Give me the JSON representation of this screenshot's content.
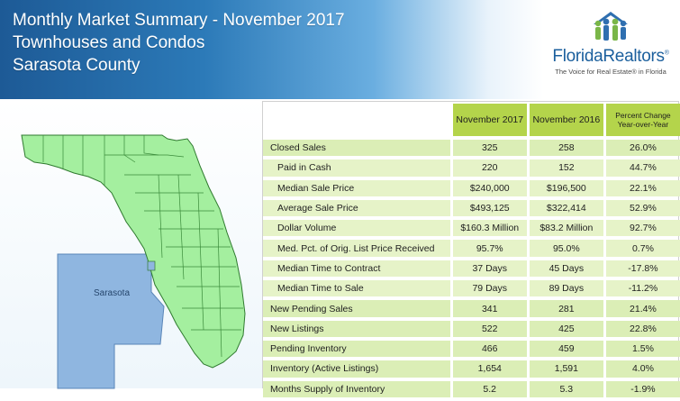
{
  "header": {
    "line1": "Monthly Market Summary - November 2017",
    "line2": "Townhouses and Condos",
    "line3": "Sarasota County"
  },
  "logo": {
    "icon": "people-house-logo-icon",
    "word": "FloridaRealtors",
    "reg": "®",
    "tagline": "The Voice for Real Estate® in Florida"
  },
  "map": {
    "county_label": "Sarasota",
    "highlight_color": "#8fb6e0",
    "state_color": "#a4ef9f"
  },
  "table": {
    "columns": [
      "November 2017",
      "November 2016",
      "Percent Change",
      "Year-over-Year"
    ],
    "rows": [
      {
        "label": "Closed Sales",
        "cur": "325",
        "prev": "258",
        "pct": "26.0%"
      },
      {
        "label": "Paid in Cash",
        "cur": "220",
        "prev": "152",
        "pct": "44.7%"
      },
      {
        "label": "Median Sale Price",
        "cur": "$240,000",
        "prev": "$196,500",
        "pct": "22.1%"
      },
      {
        "label": "Average Sale Price",
        "cur": "$493,125",
        "prev": "$322,414",
        "pct": "52.9%"
      },
      {
        "label": "Dollar Volume",
        "cur": "$160.3 Million",
        "prev": "$83.2 Million",
        "pct": "92.7%"
      },
      {
        "label": "Med. Pct. of Orig. List Price Received",
        "cur": "95.7%",
        "prev": "95.0%",
        "pct": "0.7%"
      },
      {
        "label": "Median Time to Contract",
        "cur": "37 Days",
        "prev": "45 Days",
        "pct": "-17.8%"
      },
      {
        "label": "Median Time to Sale",
        "cur": "79 Days",
        "prev": "89 Days",
        "pct": "-11.2%"
      },
      {
        "label": "New Pending Sales",
        "cur": "341",
        "prev": "281",
        "pct": "21.4%"
      },
      {
        "label": "New Listings",
        "cur": "522",
        "prev": "425",
        "pct": "22.8%"
      },
      {
        "label": "Pending Inventory",
        "cur": "466",
        "prev": "459",
        "pct": "1.5%"
      },
      {
        "label": "Inventory (Active Listings)",
        "cur": "1,654",
        "prev": "1,591",
        "pct": "4.0%"
      },
      {
        "label": "Months Supply of Inventory",
        "cur": "5.2",
        "prev": "5.3",
        "pct": "-1.9%"
      }
    ]
  }
}
